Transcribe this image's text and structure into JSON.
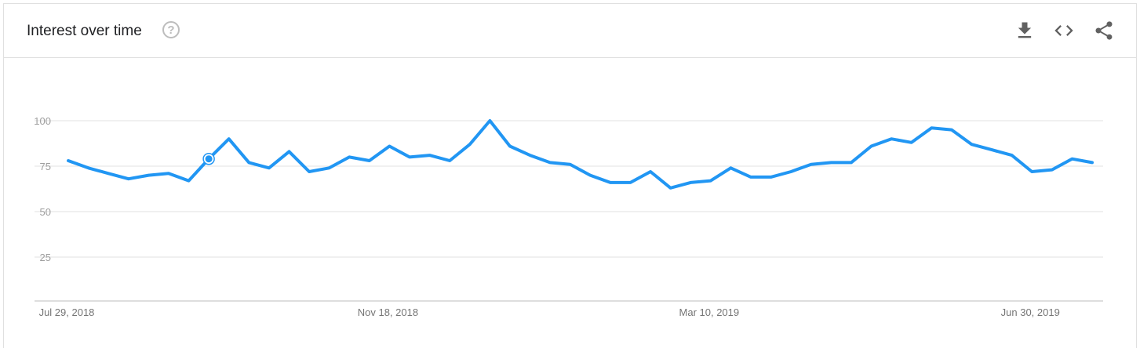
{
  "header": {
    "title": "Interest over time",
    "help_symbol": "?",
    "actions": [
      {
        "name": "download-icon"
      },
      {
        "name": "embed-code-icon"
      },
      {
        "name": "share-icon"
      }
    ]
  },
  "colors": {
    "line": "#2196f3",
    "grid": "#e0e0e0",
    "axis": "#bdbdbd",
    "tick_text": "#9e9e9e"
  },
  "chart_data": {
    "type": "line",
    "title": "Interest over time",
    "ylim": [
      0,
      100
    ],
    "y_ticks": [
      25,
      50,
      75,
      100
    ],
    "x_tick_labels": [
      "Jul 29, 2018",
      "Nov 18, 2018",
      "Mar 10, 2019",
      "Jun 30, 2019"
    ],
    "x_tick_indices": [
      0,
      16,
      32,
      48
    ],
    "grid": true,
    "highlighted_index": 7,
    "series": [
      {
        "values": [
          78,
          74,
          71,
          68,
          70,
          71,
          67,
          79,
          90,
          77,
          74,
          83,
          72,
          74,
          80,
          78,
          86,
          80,
          81,
          78,
          87,
          100,
          86,
          81,
          77,
          76,
          70,
          66,
          66,
          72,
          63,
          66,
          67,
          74,
          69,
          69,
          72,
          76,
          77,
          77,
          86,
          90,
          88,
          96,
          95,
          87,
          84,
          81,
          72,
          73,
          79,
          77
        ]
      }
    ]
  }
}
